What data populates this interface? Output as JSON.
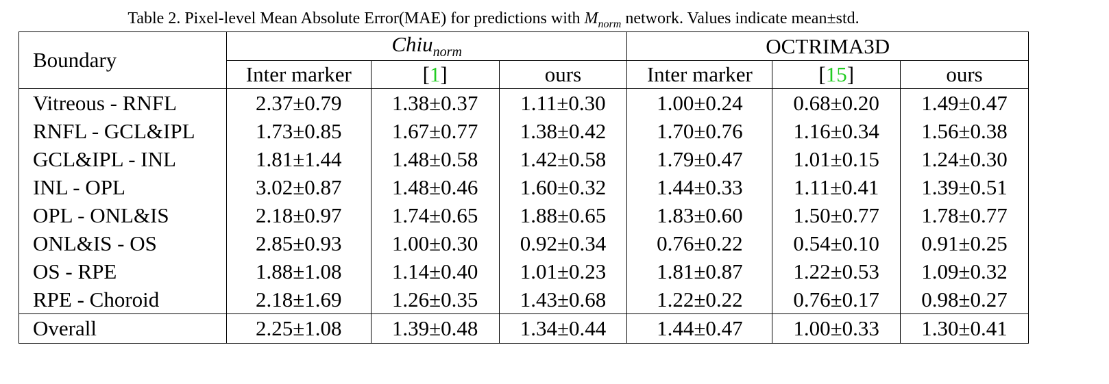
{
  "caption": {
    "prefix": "Table 2. Pixel-level Mean Absolute Error(MAE) for predictions with ",
    "math_base": "M",
    "math_sub": "norm",
    "suffix": " network. Values indicate mean±std."
  },
  "header": {
    "boundary_label": "Boundary",
    "group1": {
      "base": "Chiu",
      "sub": "norm"
    },
    "group2": {
      "label": "OCTRIMA3D"
    },
    "subheaders": [
      {
        "text": "Inter marker",
        "type": "text"
      },
      {
        "text": "[1]",
        "ref_open": "[",
        "ref_num": "1",
        "ref_close": "]",
        "type": "ref"
      },
      {
        "text": "ours",
        "type": "text"
      },
      {
        "text": "Inter marker",
        "type": "text"
      },
      {
        "text": "[15]",
        "ref_open": "[",
        "ref_num": "15",
        "ref_close": "]",
        "type": "ref"
      },
      {
        "text": "ours",
        "type": "text"
      }
    ]
  },
  "rows": [
    {
      "boundary": "Vitreous - RNFL",
      "values": [
        "2.37±0.79",
        "1.38±0.37",
        "1.11±0.30",
        "1.00±0.24",
        "0.68±0.20",
        "1.49±0.47"
      ]
    },
    {
      "boundary": "RNFL - GCL&IPL",
      "values": [
        "1.73±0.85",
        "1.67±0.77",
        "1.38±0.42",
        "1.70±0.76",
        "1.16±0.34",
        "1.56±0.38"
      ]
    },
    {
      "boundary": "GCL&IPL - INL",
      "values": [
        "1.81±1.44",
        "1.48±0.58",
        "1.42±0.58",
        "1.79±0.47",
        "1.01±0.15",
        "1.24±0.30"
      ]
    },
    {
      "boundary": "INL - OPL",
      "values": [
        "3.02±0.87",
        "1.48±0.46",
        "1.60±0.32",
        "1.44±0.33",
        "1.11±0.41",
        "1.39±0.51"
      ]
    },
    {
      "boundary": "OPL - ONL&IS",
      "values": [
        "2.18±0.97",
        "1.74±0.65",
        "1.88±0.65",
        "1.83±0.60",
        "1.50±0.77",
        "1.78±0.77"
      ]
    },
    {
      "boundary": "ONL&IS - OS",
      "values": [
        "2.85±0.93",
        "1.00±0.30",
        "0.92±0.34",
        "0.76±0.22",
        "0.54±0.10",
        "0.91±0.25"
      ]
    },
    {
      "boundary": "OS - RPE",
      "values": [
        "1.88±1.08",
        "1.14±0.40",
        "1.01±0.23",
        "1.81±0.87",
        "1.22±0.53",
        "1.09±0.32"
      ]
    },
    {
      "boundary": "RPE - Choroid",
      "values": [
        "2.18±1.69",
        "1.26±0.35",
        "1.43±0.68",
        "1.22±0.22",
        "0.76±0.17",
        "0.98±0.27"
      ]
    }
  ],
  "overall": {
    "label": "Overall",
    "values": [
      "2.25±1.08",
      "1.39±0.48",
      "1.34±0.44",
      "1.44±0.47",
      "1.00±0.33",
      "1.30±0.41"
    ]
  },
  "colors": {
    "reference_link": "#22cc22",
    "text": "#000000",
    "background": "#ffffff"
  }
}
